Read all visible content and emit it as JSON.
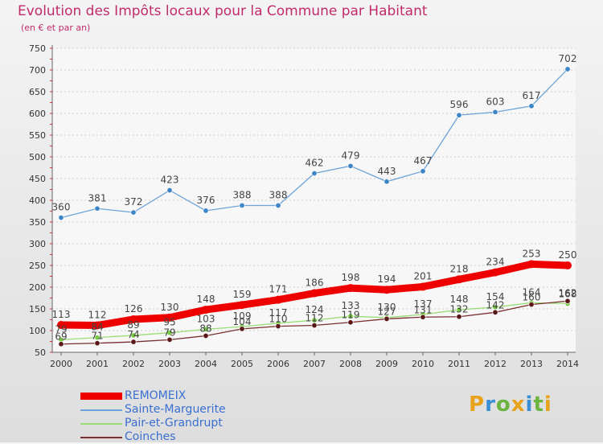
{
  "page": {
    "title": "Evolution des Impôts locaux pour la Commune par Habitant",
    "subtitle": "(en € et par an)"
  },
  "colors": {
    "title": "#c22b6b",
    "axis": "#666666",
    "grid": "#cccccc",
    "legend_text": "#3a6fd1"
  },
  "logo": {
    "text": "Proxiti",
    "letter_colors": [
      "#e8a21a",
      "#3b8ed4",
      "#6cb33f",
      "#e8a21a",
      "#3b8ed4",
      "#6cb33f",
      "#e8a21a"
    ]
  },
  "chart_data": {
    "type": "line",
    "x": [
      "2000",
      "2001",
      "2002",
      "2003",
      "2004",
      "2005",
      "2006",
      "2007",
      "2008",
      "2009",
      "2010",
      "2011",
      "2012",
      "2013",
      "2014"
    ],
    "ylim": [
      50,
      750
    ],
    "yticks": [
      50,
      100,
      150,
      200,
      250,
      300,
      350,
      400,
      450,
      500,
      550,
      600,
      650,
      700,
      750
    ],
    "grid": true,
    "legend_position": "bottom-left",
    "series": [
      {
        "name": "REMOMEIX",
        "color": "#ee0000",
        "width": "thick",
        "values": [
          113,
          112,
          126,
          130,
          148,
          159,
          171,
          186,
          198,
          194,
          201,
          218,
          234,
          253,
          250
        ],
        "labels": [
          "113",
          "112",
          "126",
          "130",
          "148",
          "159",
          "171",
          "186",
          "198",
          "194",
          "201",
          "218",
          "234",
          "253",
          "250"
        ]
      },
      {
        "name": "Sainte-Marguerite",
        "color": "#6ba4d8",
        "marker": "#3d85c6",
        "width": "thin",
        "values": [
          360,
          381,
          372,
          423,
          376,
          388,
          388,
          462,
          479,
          443,
          467,
          596,
          603,
          617,
          702
        ],
        "labels": [
          "360",
          "381",
          "372",
          "423",
          "376",
          "388",
          "388",
          "462",
          "479",
          "443",
          "467",
          "596",
          "603",
          "617",
          "702"
        ]
      },
      {
        "name": "Pair-et-Grandrupt",
        "color": "#99dd77",
        "marker": "#77cc44",
        "width": "thin",
        "values": [
          79,
          84,
          89,
          95,
          103,
          109,
          117,
          124,
          133,
          130,
          137,
          148,
          154,
          164,
          162
        ],
        "labels": [
          "79",
          "84",
          "89",
          "95",
          "103",
          "109",
          "117",
          "124",
          "133",
          "130",
          "137",
          "148",
          "154",
          "164",
          "162"
        ]
      },
      {
        "name": "Coinches",
        "color": "#7a2e2e",
        "marker": "#5a1818",
        "width": "thin",
        "values": [
          69,
          71,
          74,
          79,
          88,
          104,
          110,
          112,
          119,
          127,
          131,
          132,
          142,
          160,
          168
        ],
        "labels": [
          "69",
          "71",
          "74",
          "79",
          "88",
          "104",
          "110",
          "112",
          "119",
          "127",
          "131",
          "132",
          "142",
          "160",
          "168"
        ]
      }
    ]
  }
}
